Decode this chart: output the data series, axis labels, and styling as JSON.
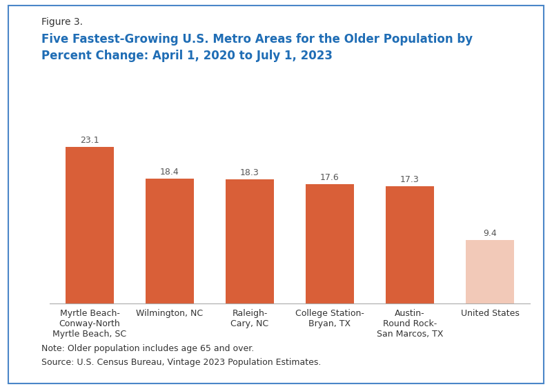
{
  "figure_label": "Figure 3.",
  "title": "Five Fastest-Growing U.S. Metro Areas for the Older Population by\nPercent Change: April 1, 2020 to July 1, 2023",
  "categories": [
    "Myrtle Beach-\nConway-North\nMyrtle Beach, SC",
    "Wilmington, NC",
    "Raleigh-\nCary, NC",
    "College Station-\nBryan, TX",
    "Austin-\nRound Rock-\nSan Marcos, TX",
    "United States"
  ],
  "values": [
    23.1,
    18.4,
    18.3,
    17.6,
    17.3,
    9.4
  ],
  "bar_colors": [
    "#D95F38",
    "#D95F38",
    "#D95F38",
    "#D95F38",
    "#D95F38",
    "#F2C9B8"
  ],
  "value_labels": [
    "23.1",
    "18.4",
    "18.3",
    "17.6",
    "17.3",
    "9.4"
  ],
  "ylim": [
    0,
    27
  ],
  "note_line1": "Note: Older population includes age 65 and over.",
  "note_line2": "Source: U.S. Census Bureau, Vintage 2023 Population Estimates.",
  "figure_label_color": "#333333",
  "title_color": "#1F6DB5",
  "bar_value_color": "#555555",
  "note_color": "#333333",
  "background_color": "#FFFFFF",
  "border_color": "#4A86C8",
  "tick_label_fontsize": 9,
  "value_label_fontsize": 9,
  "title_fontsize": 12,
  "figure_label_fontsize": 10,
  "note_fontsize": 9
}
